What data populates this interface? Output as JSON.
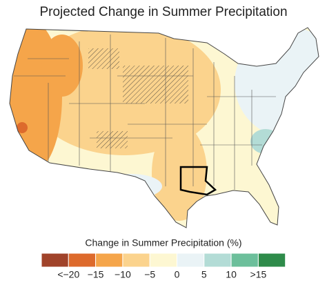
{
  "title": "Projected Change in Summer Precipitation",
  "legend": {
    "title": "Change in Summer Precipitation (%)",
    "colors": [
      "#a0432a",
      "#dd6a2c",
      "#f5a54a",
      "#fbd38d",
      "#fdf7d2",
      "#eaf3f6",
      "#b3dcd6",
      "#6cbf9b",
      "#2e8b4a"
    ],
    "labels": [
      "<−20",
      "−15",
      "−10",
      "−5",
      "0",
      "5",
      "10",
      ">15"
    ]
  }
}
